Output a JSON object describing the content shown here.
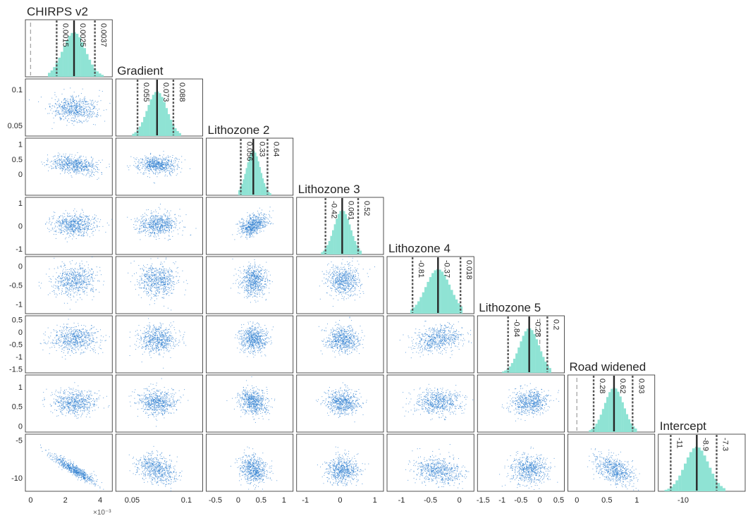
{
  "colors": {
    "histogram": "#8fe3d4",
    "scatter": "#2f7fd0",
    "median_line": "#262626",
    "ci_line": "#555555",
    "zero_line": "#a6a6a6"
  },
  "chart_data": {
    "type": "scatter",
    "layout": "corner-plot",
    "variables": [
      {
        "name": "CHIRPS v2",
        "xlim": [
          -0.0003,
          0.0047
        ],
        "xticks": [
          "0",
          "2",
          "4"
        ],
        "xtick_values": [
          0,
          0.002,
          0.004
        ],
        "x_exponent": "×10⁻³",
        "yticks": [],
        "ytick_values": [],
        "median": 0.0025,
        "lo": 0.0015,
        "hi": 0.0037,
        "zero_ref": true,
        "labels": [
          "0.0015",
          "0.0025",
          "0.0037"
        ],
        "center": 0.0025,
        "sd": 0.00065,
        "hist_range": [
          0.001,
          0.0042
        ]
      },
      {
        "name": "Gradient",
        "xlim": [
          0.035,
          0.115
        ],
        "xticks": [
          "0.05",
          "0.1"
        ],
        "xtick_values": [
          0.05,
          0.1
        ],
        "yticks": [
          "0.1",
          "0.05"
        ],
        "ytick_values": [
          0.1,
          0.05
        ],
        "median": 0.073,
        "lo": 0.055,
        "hi": 0.088,
        "zero_ref": false,
        "labels": [
          "0.055",
          "0.073",
          "0.088"
        ],
        "center": 0.073,
        "sd": 0.009,
        "hist_range": [
          0.05,
          0.095
        ]
      },
      {
        "name": "Lithozone 2",
        "xlim": [
          -0.7,
          1.2
        ],
        "xticks": [
          "-0.5",
          "0",
          "0.5",
          "1"
        ],
        "xtick_values": [
          -0.5,
          0,
          0.5,
          1
        ],
        "yticks": [
          "1",
          "0.5",
          "0"
        ],
        "ytick_values": [
          1,
          0.5,
          0
        ],
        "median": 0.33,
        "lo": 0.056,
        "hi": 0.64,
        "zero_ref": false,
        "labels": [
          "0.056",
          "0.33",
          "0.64"
        ],
        "center": 0.33,
        "sd": 0.15,
        "hist_range": [
          0.0,
          0.72
        ]
      },
      {
        "name": "Lithozone 3",
        "xlim": [
          -1.25,
          1.25
        ],
        "xticks": [
          "-1",
          "0",
          "1"
        ],
        "xtick_values": [
          -1,
          0,
          1
        ],
        "yticks": [
          "1",
          "0",
          "-1"
        ],
        "ytick_values": [
          1,
          0,
          -1
        ],
        "median": 0.061,
        "lo": -0.42,
        "hi": 0.52,
        "zero_ref": false,
        "labels": [
          "-0.42",
          "0.061",
          "0.52"
        ],
        "center": 0.061,
        "sd": 0.24,
        "hist_range": [
          -0.55,
          0.62
        ]
      },
      {
        "name": "Lithozone 4",
        "xlim": [
          -1.25,
          0.25
        ],
        "xticks": [
          "-1",
          "-0.5",
          "0"
        ],
        "xtick_values": [
          -1,
          -0.5,
          0
        ],
        "yticks": [
          "0",
          "-0.5",
          "-1"
        ],
        "ytick_values": [
          0,
          -0.5,
          -1
        ],
        "median": -0.37,
        "lo": -0.81,
        "hi": 0.018,
        "zero_ref": false,
        "labels": [
          "-0.81",
          "-0.37",
          "0.018"
        ],
        "center": -0.37,
        "sd": 0.21,
        "hist_range": [
          -0.85,
          0.05
        ]
      },
      {
        "name": "Lithozone 5",
        "xlim": [
          -1.65,
          0.65
        ],
        "xticks": [
          "-1.5",
          "-1",
          "-0.5",
          "0",
          "0.5"
        ],
        "xtick_values": [
          -1.5,
          -1,
          -0.5,
          0,
          0.5
        ],
        "yticks": [
          "0.5",
          "0",
          "-0.5",
          "-1",
          "-1.5"
        ],
        "ytick_values": [
          0.5,
          0,
          -0.5,
          -1,
          -1.5
        ],
        "median": -0.28,
        "lo": -0.84,
        "hi": 0.2,
        "zero_ref": true,
        "labels": [
          "-0.84",
          "-0.28",
          "0.2"
        ],
        "center": -0.28,
        "sd": 0.26,
        "hist_range": [
          -1.0,
          0.3
        ]
      },
      {
        "name": "Road widened",
        "xlim": [
          -0.15,
          1.3
        ],
        "xticks": [
          "0",
          "0.5",
          "1"
        ],
        "xtick_values": [
          0,
          0.5,
          1
        ],
        "yticks": [
          "1",
          "0.5",
          "0"
        ],
        "ytick_values": [
          1,
          0.5,
          0
        ],
        "median": 0.62,
        "lo": 0.28,
        "hi": 0.93,
        "zero_ref": true,
        "labels": [
          "0.28",
          "0.62",
          "0.93"
        ],
        "center": 0.62,
        "sd": 0.16,
        "hist_range": [
          0.2,
          1.0
        ]
      },
      {
        "name": "Intercept",
        "xlim": [
          -12.0,
          -5.0
        ],
        "xticks": [
          "-10"
        ],
        "xtick_values": [
          -10
        ],
        "yticks": [
          "-5",
          "-10"
        ],
        "ytick_values": [
          -5,
          -10
        ],
        "median": -8.9,
        "lo": -11,
        "hi": -7.3,
        "zero_ref": false,
        "labels": [
          "-11",
          "-8.9",
          "-7.3"
        ],
        "center": -8.9,
        "sd": 0.95,
        "hist_range": [
          -11.5,
          -6.6
        ]
      }
    ],
    "intercept_ylim": [
      -11.8,
      -4.2
    ],
    "correlations": {
      "7_0": -0.93,
      "2_0": -0.25,
      "3_2": 0.45,
      "4_3": -0.1,
      "5_4": 0.25,
      "7_1": -0.3,
      "7_6": -0.45,
      "6_2": -0.2,
      "7_2": -0.2,
      "7_4": -0.2,
      "6_5": 0.1,
      "4_0": 0.1
    }
  }
}
